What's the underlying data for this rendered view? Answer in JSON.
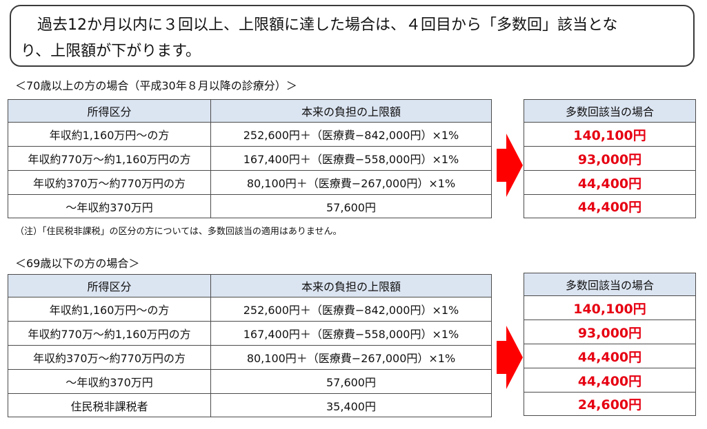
{
  "notice": {
    "line1": "過去12か月以内に３回以上、上限額に達した場合は、４回目から「多数回」該当とな",
    "line2": "り、上限額が下がります。"
  },
  "colors": {
    "header_bg": "#dbe4f1",
    "accent_red": "#e60012",
    "border": "#4a4a4a"
  },
  "table1": {
    "caption": "＜70歳以上の方の場合（平成30年８月以降の診療分）＞",
    "headers": {
      "income": "所得区分",
      "limit": "本来の負担の上限額"
    },
    "rows": [
      {
        "income": "年収約1,160万円〜の方",
        "limit": "252,600円＋（医療費−842,000円）×1%"
      },
      {
        "income": "年収約770万〜約1,160万円の方",
        "limit": "167,400円＋（医療費−558,000円）×1%"
      },
      {
        "income": "年収約370万〜約770万円の方",
        "limit": "80,100円＋（医療費−267,000円）×1%"
      },
      {
        "income": "〜年収約370万円",
        "limit": "57,600円"
      }
    ],
    "arrow_icon": "right-arrow-icon",
    "multi": {
      "header": "多数回該当の場合",
      "values": [
        "140,100円",
        "93,000円",
        "44,400円",
        "44,400円"
      ]
    },
    "note": "（注）「住民税非課税」の区分の方については、多数回該当の適用はありません。"
  },
  "table2": {
    "caption": "＜69歳以下の方の場合＞",
    "headers": {
      "income": "所得区分",
      "limit": "本来の負担の上限額"
    },
    "rows": [
      {
        "income": "年収約1,160万円〜の方",
        "limit": "252,600円＋（医療費−842,000円）×1%"
      },
      {
        "income": "年収約770万〜約1,160万円の方",
        "limit": "167,400円＋（医療費−558,000円）×1%"
      },
      {
        "income": "年収約370万〜約770万円の方",
        "limit": "80,100円＋（医療費−267,000円）×1%"
      },
      {
        "income": "〜年収約370万円",
        "limit": "57,600円"
      },
      {
        "income": "住民税非課税者",
        "limit": "35,400円"
      }
    ],
    "arrow_icon": "right-arrow-icon",
    "multi": {
      "header": "多数回該当の場合",
      "values": [
        "140,100円",
        "93,000円",
        "44,400円",
        "44,400円",
        "24,600円"
      ]
    }
  }
}
